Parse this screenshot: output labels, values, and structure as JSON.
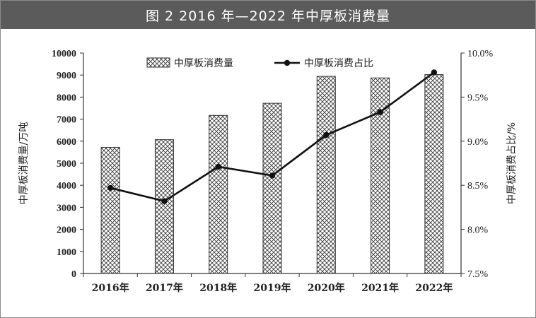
{
  "title": "图 2 2016 年—2022 年中厚板消费量",
  "chart_data": {
    "type": "bar",
    "categories": [
      "2016年",
      "2017年",
      "2018年",
      "2019年",
      "2020年",
      "2021年",
      "2022年"
    ],
    "series": [
      {
        "name": "中厚板消费量",
        "type": "bar",
        "axis": "left",
        "values": [
          5720,
          6070,
          7170,
          7720,
          8940,
          8870,
          9020
        ]
      },
      {
        "name": "中厚板消费占比",
        "type": "line",
        "axis": "right",
        "values": [
          8.47,
          8.32,
          8.71,
          8.61,
          9.07,
          9.33,
          9.78
        ]
      }
    ],
    "ylabel": "中厚板消费量/万吨",
    "y2label": "中厚板消费占比/%",
    "ylim": [
      0,
      10000
    ],
    "y2lim": [
      7.5,
      10.0
    ],
    "yticks": [
      "0",
      "1000",
      "2000",
      "3000",
      "4000",
      "5000",
      "6000",
      "7000",
      "8000",
      "9000",
      "10000"
    ],
    "y2ticks": [
      "7.5%",
      "8.0%",
      "8.5%",
      "9.0%",
      "9.5%",
      "10.0%"
    ],
    "legend": "top",
    "grid": false
  }
}
